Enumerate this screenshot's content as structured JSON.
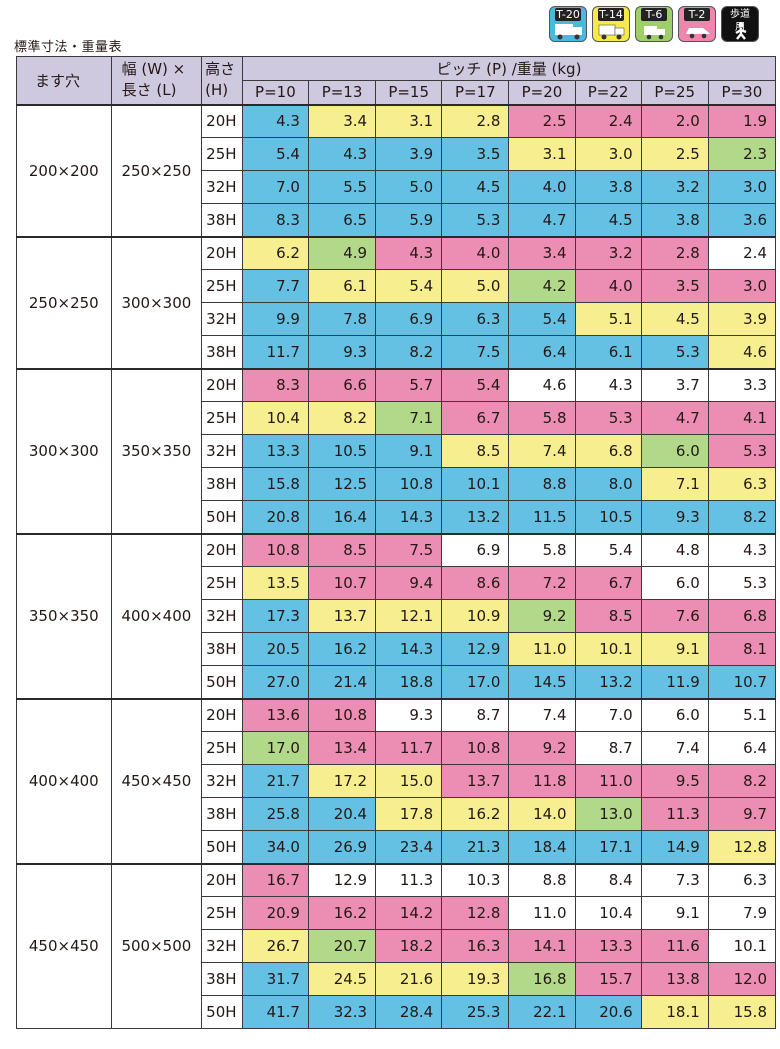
{
  "caption": "標準寸法・重量表",
  "legend": [
    {
      "label": "T-20",
      "color": "#4ab9dd",
      "icon": "truck-large-icon"
    },
    {
      "label": "T-14",
      "color": "#f5e94b",
      "icon": "truck-medium-icon"
    },
    {
      "label": "T-6",
      "color": "#9fcf6a",
      "icon": "truck-small-icon"
    },
    {
      "label": "T-2",
      "color": "#ef86ad",
      "icon": "car-icon"
    },
    {
      "label": "歩道用",
      "color": "#111111",
      "icon": "pedestrian-icon"
    }
  ],
  "header": {
    "opening": "ます穴",
    "width_length": [
      "幅 (W) ×",
      "長さ (L)"
    ],
    "height": [
      "高さ",
      "(H)"
    ],
    "pitch": "ピッチ (P) /重量 (kg)",
    "pitches": [
      "P=10",
      "P=13",
      "P=15",
      "P=17",
      "P=20",
      "P=22",
      "P=25",
      "P=30"
    ]
  },
  "groups": [
    {
      "opening": "200×200",
      "size": "250×250",
      "rows": [
        {
          "h": "20H",
          "v": [
            "4.3",
            "3.4",
            "3.1",
            "2.8",
            "2.5",
            "2.4",
            "2.0",
            "1.9"
          ],
          "c": [
            "blue",
            "yellow",
            "yellow",
            "yellow",
            "pink",
            "pink",
            "pink",
            "pink"
          ]
        },
        {
          "h": "25H",
          "v": [
            "5.4",
            "4.3",
            "3.9",
            "3.5",
            "3.1",
            "3.0",
            "2.5",
            "2.3"
          ],
          "c": [
            "blue",
            "blue",
            "blue",
            "blue",
            "yellow",
            "yellow",
            "yellow",
            "green"
          ]
        },
        {
          "h": "32H",
          "v": [
            "7.0",
            "5.5",
            "5.0",
            "4.5",
            "4.0",
            "3.8",
            "3.2",
            "3.0"
          ],
          "c": [
            "blue",
            "blue",
            "blue",
            "blue",
            "blue",
            "blue",
            "blue",
            "blue"
          ]
        },
        {
          "h": "38H",
          "v": [
            "8.3",
            "6.5",
            "5.9",
            "5.3",
            "4.7",
            "4.5",
            "3.8",
            "3.6"
          ],
          "c": [
            "blue",
            "blue",
            "blue",
            "blue",
            "blue",
            "blue",
            "blue",
            "blue"
          ]
        }
      ]
    },
    {
      "opening": "250×250",
      "size": "300×300",
      "rows": [
        {
          "h": "20H",
          "v": [
            "6.2",
            "4.9",
            "4.3",
            "4.0",
            "3.4",
            "3.2",
            "2.8",
            "2.4"
          ],
          "c": [
            "yellow",
            "green",
            "pink",
            "pink",
            "pink",
            "pink",
            "pink",
            "white"
          ]
        },
        {
          "h": "25H",
          "v": [
            "7.7",
            "6.1",
            "5.4",
            "5.0",
            "4.2",
            "4.0",
            "3.5",
            "3.0"
          ],
          "c": [
            "blue",
            "yellow",
            "yellow",
            "yellow",
            "green",
            "pink",
            "pink",
            "pink"
          ]
        },
        {
          "h": "32H",
          "v": [
            "9.9",
            "7.8",
            "6.9",
            "6.3",
            "5.4",
            "5.1",
            "4.5",
            "3.9"
          ],
          "c": [
            "blue",
            "blue",
            "blue",
            "blue",
            "blue",
            "yellow",
            "yellow",
            "yellow"
          ]
        },
        {
          "h": "38H",
          "v": [
            "11.7",
            "9.3",
            "8.2",
            "7.5",
            "6.4",
            "6.1",
            "5.3",
            "4.6"
          ],
          "c": [
            "blue",
            "blue",
            "blue",
            "blue",
            "blue",
            "blue",
            "blue",
            "yellow"
          ]
        }
      ]
    },
    {
      "opening": "300×300",
      "size": "350×350",
      "rows": [
        {
          "h": "20H",
          "v": [
            "8.3",
            "6.6",
            "5.7",
            "5.4",
            "4.6",
            "4.3",
            "3.7",
            "3.3"
          ],
          "c": [
            "pink",
            "pink",
            "pink",
            "pink",
            "white",
            "white",
            "white",
            "white"
          ]
        },
        {
          "h": "25H",
          "v": [
            "10.4",
            "8.2",
            "7.1",
            "6.7",
            "5.8",
            "5.3",
            "4.7",
            "4.1"
          ],
          "c": [
            "yellow",
            "yellow",
            "green",
            "pink",
            "pink",
            "pink",
            "pink",
            "pink"
          ]
        },
        {
          "h": "32H",
          "v": [
            "13.3",
            "10.5",
            "9.1",
            "8.5",
            "7.4",
            "6.8",
            "6.0",
            "5.3"
          ],
          "c": [
            "blue",
            "blue",
            "blue",
            "yellow",
            "yellow",
            "yellow",
            "green",
            "pink"
          ]
        },
        {
          "h": "38H",
          "v": [
            "15.8",
            "12.5",
            "10.8",
            "10.1",
            "8.8",
            "8.0",
            "7.1",
            "6.3"
          ],
          "c": [
            "blue",
            "blue",
            "blue",
            "blue",
            "blue",
            "blue",
            "yellow",
            "yellow"
          ]
        },
        {
          "h": "50H",
          "v": [
            "20.8",
            "16.4",
            "14.3",
            "13.2",
            "11.5",
            "10.5",
            "9.3",
            "8.2"
          ],
          "c": [
            "blue",
            "blue",
            "blue",
            "blue",
            "blue",
            "blue",
            "blue",
            "blue"
          ]
        }
      ]
    },
    {
      "opening": "350×350",
      "size": "400×400",
      "rows": [
        {
          "h": "20H",
          "v": [
            "10.8",
            "8.5",
            "7.5",
            "6.9",
            "5.8",
            "5.4",
            "4.8",
            "4.3"
          ],
          "c": [
            "pink",
            "pink",
            "pink",
            "white",
            "white",
            "white",
            "white",
            "white"
          ]
        },
        {
          "h": "25H",
          "v": [
            "13.5",
            "10.7",
            "9.4",
            "8.6",
            "7.2",
            "6.7",
            "6.0",
            "5.3"
          ],
          "c": [
            "yellow",
            "pink",
            "pink",
            "pink",
            "pink",
            "pink",
            "white",
            "white"
          ]
        },
        {
          "h": "32H",
          "v": [
            "17.3",
            "13.7",
            "12.1",
            "10.9",
            "9.2",
            "8.5",
            "7.6",
            "6.8"
          ],
          "c": [
            "blue",
            "yellow",
            "yellow",
            "yellow",
            "green",
            "pink",
            "pink",
            "pink"
          ]
        },
        {
          "h": "38H",
          "v": [
            "20.5",
            "16.2",
            "14.3",
            "12.9",
            "11.0",
            "10.1",
            "9.1",
            "8.1"
          ],
          "c": [
            "blue",
            "blue",
            "blue",
            "blue",
            "yellow",
            "yellow",
            "yellow",
            "pink"
          ]
        },
        {
          "h": "50H",
          "v": [
            "27.0",
            "21.4",
            "18.8",
            "17.0",
            "14.5",
            "13.2",
            "11.9",
            "10.7"
          ],
          "c": [
            "blue",
            "blue",
            "blue",
            "blue",
            "blue",
            "blue",
            "blue",
            "blue"
          ]
        }
      ]
    },
    {
      "opening": "400×400",
      "size": "450×450",
      "rows": [
        {
          "h": "20H",
          "v": [
            "13.6",
            "10.8",
            "9.3",
            "8.7",
            "7.4",
            "7.0",
            "6.0",
            "5.1"
          ],
          "c": [
            "pink",
            "pink",
            "white",
            "white",
            "white",
            "white",
            "white",
            "white"
          ]
        },
        {
          "h": "25H",
          "v": [
            "17.0",
            "13.4",
            "11.7",
            "10.8",
            "9.2",
            "8.7",
            "7.4",
            "6.4"
          ],
          "c": [
            "green",
            "pink",
            "pink",
            "pink",
            "pink",
            "white",
            "white",
            "white"
          ]
        },
        {
          "h": "32H",
          "v": [
            "21.7",
            "17.2",
            "15.0",
            "13.7",
            "11.8",
            "11.0",
            "9.5",
            "8.2"
          ],
          "c": [
            "blue",
            "yellow",
            "yellow",
            "pink",
            "pink",
            "pink",
            "pink",
            "pink"
          ]
        },
        {
          "h": "38H",
          "v": [
            "25.8",
            "20.4",
            "17.8",
            "16.2",
            "14.0",
            "13.0",
            "11.3",
            "9.7"
          ],
          "c": [
            "blue",
            "blue",
            "yellow",
            "yellow",
            "yellow",
            "green",
            "pink",
            "pink"
          ]
        },
        {
          "h": "50H",
          "v": [
            "34.0",
            "26.9",
            "23.4",
            "21.3",
            "18.4",
            "17.1",
            "14.9",
            "12.8"
          ],
          "c": [
            "blue",
            "blue",
            "blue",
            "blue",
            "blue",
            "blue",
            "blue",
            "yellow"
          ]
        }
      ]
    },
    {
      "opening": "450×450",
      "size": "500×500",
      "rows": [
        {
          "h": "20H",
          "v": [
            "16.7",
            "12.9",
            "11.3",
            "10.3",
            "8.8",
            "8.4",
            "7.3",
            "6.3"
          ],
          "c": [
            "pink",
            "white",
            "white",
            "white",
            "white",
            "white",
            "white",
            "white"
          ]
        },
        {
          "h": "25H",
          "v": [
            "20.9",
            "16.2",
            "14.2",
            "12.8",
            "11.0",
            "10.4",
            "9.1",
            "7.9"
          ],
          "c": [
            "pink",
            "pink",
            "pink",
            "pink",
            "white",
            "white",
            "white",
            "white"
          ]
        },
        {
          "h": "32H",
          "v": [
            "26.7",
            "20.7",
            "18.2",
            "16.3",
            "14.1",
            "13.3",
            "11.6",
            "10.1"
          ],
          "c": [
            "yellow",
            "green",
            "pink",
            "pink",
            "pink",
            "pink",
            "pink",
            "white"
          ]
        },
        {
          "h": "38H",
          "v": [
            "31.7",
            "24.5",
            "21.6",
            "19.3",
            "16.8",
            "15.7",
            "13.8",
            "12.0"
          ],
          "c": [
            "blue",
            "yellow",
            "yellow",
            "yellow",
            "green",
            "pink",
            "pink",
            "pink"
          ]
        },
        {
          "h": "50H",
          "v": [
            "41.7",
            "32.3",
            "28.4",
            "25.3",
            "22.1",
            "20.6",
            "18.1",
            "15.8"
          ],
          "c": [
            "blue",
            "blue",
            "blue",
            "blue",
            "blue",
            "blue",
            "yellow",
            "yellow"
          ]
        }
      ]
    }
  ]
}
